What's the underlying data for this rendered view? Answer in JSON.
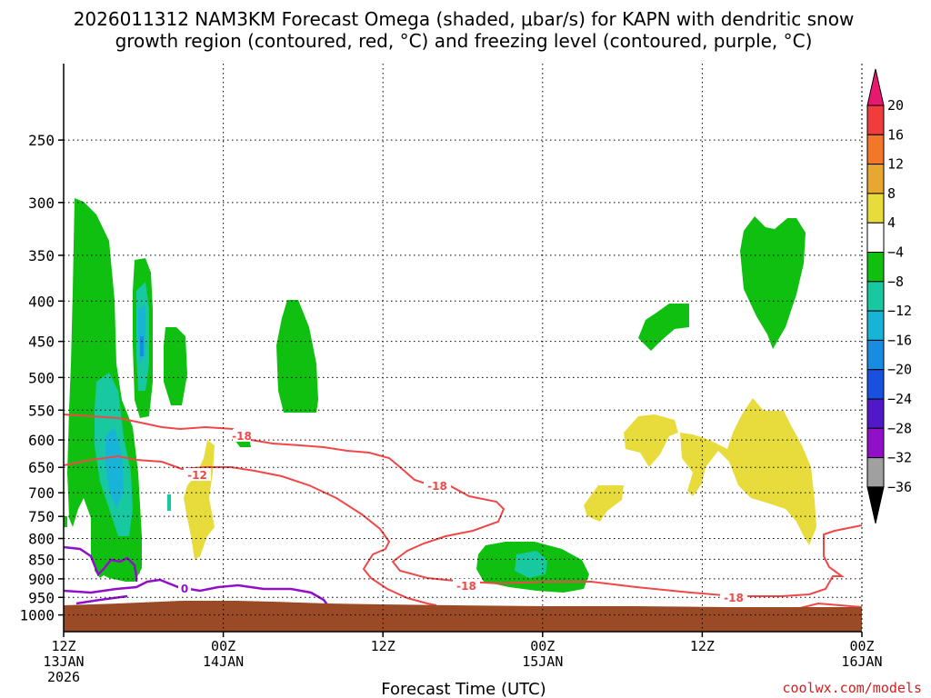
{
  "chart_data": {
    "type": "contour",
    "title_line1": "2026011312 NAM3KM Forecast Omega (shaded, μbar/s) for KAPN with dendritic snow",
    "title_line2": "growth region (contoured, red, °C) and freezing level (contoured, purple, °C)",
    "xlabel": "Forecast Time (UTC)",
    "credit": "coolwx.com/models",
    "y_axis": {
      "scale": "log-pressure",
      "range_hPa": [
        1050,
        200
      ],
      "ticks": [
        "250",
        "300",
        "350",
        "400",
        "450",
        "500",
        "550",
        "600",
        "650",
        "700",
        "750",
        "800",
        "850",
        "900",
        "950",
        "1000"
      ]
    },
    "x_axis": {
      "range_hours": [
        0,
        60
      ],
      "ticks": [
        {
          "hour": 0,
          "line1": "12Z",
          "line2": "13JAN",
          "line3": "2026"
        },
        {
          "hour": 12,
          "line1": "00Z",
          "line2": "14JAN",
          "line3": ""
        },
        {
          "hour": 24,
          "line1": "12Z",
          "line2": "",
          "line3": ""
        },
        {
          "hour": 36,
          "line1": "00Z",
          "line2": "15JAN",
          "line3": ""
        },
        {
          "hour": 48,
          "line1": "12Z",
          "line2": "",
          "line3": ""
        },
        {
          "hour": 60,
          "line1": "00Z",
          "line2": "16JAN",
          "line3": ""
        }
      ]
    },
    "colorbar": {
      "labels": [
        "20",
        "16",
        "12",
        "8",
        "4",
        "−4",
        "−8",
        "−12",
        "−16",
        "−20",
        "−24",
        "−28",
        "−32",
        "−36"
      ],
      "colors": [
        "#e8186e",
        "#f03c3c",
        "#f07828",
        "#e8a830",
        "#e8dc3c",
        "#ffffff",
        "#10c010",
        "#18c8a0",
        "#18b4d8",
        "#188ce0",
        "#1850e0",
        "#5018c8",
        "#9010c8",
        "#a0a0a0",
        "#000000"
      ]
    },
    "contour_labels": {
      "dgz": [
        "-18",
        "-12",
        "-18",
        "-18",
        "-18"
      ],
      "freezing": [
        "0"
      ]
    },
    "colors": {
      "dgz": "#f04848",
      "freezing": "#9010c8",
      "label_red": "#f04848",
      "terrain": "#9a4a24",
      "upward_green": "#10c010",
      "upward_teal": "#18c8a0",
      "upward_cyan": "#18b4d8",
      "downward_yellow": "#e8dc3c"
    }
  }
}
